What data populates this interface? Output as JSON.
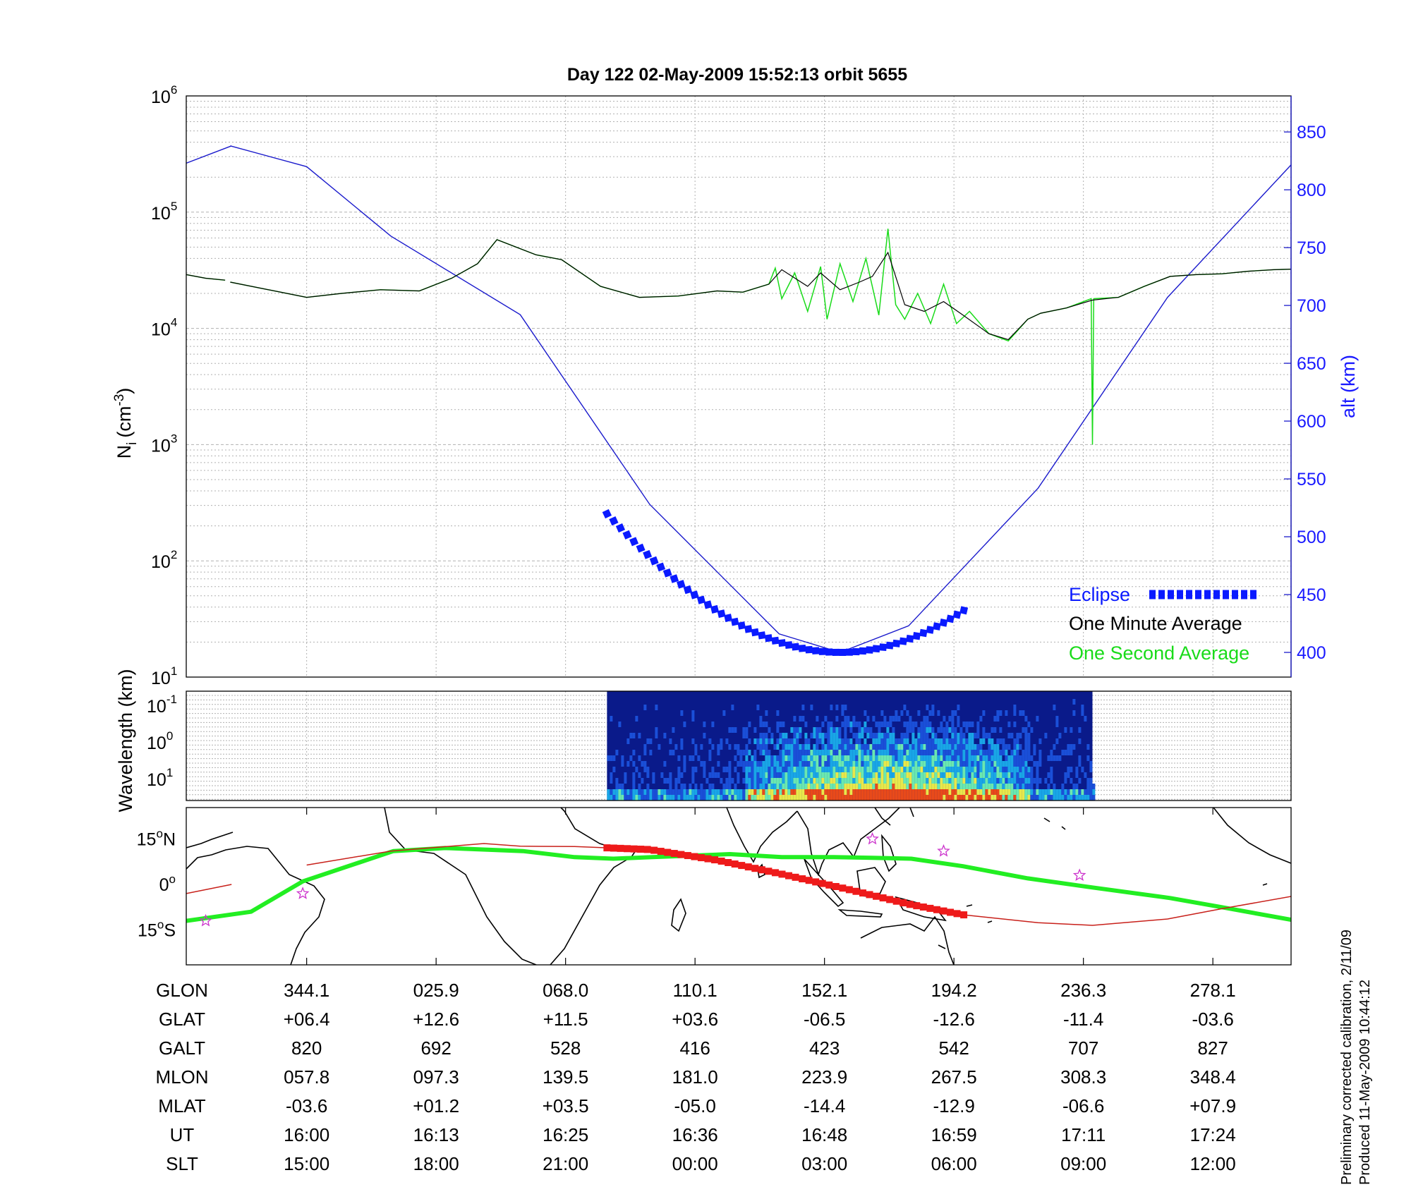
{
  "title": "Day 122  02-May-2009 15:52:13   orbit 5655",
  "colors": {
    "density_avg": "#000000",
    "density_1s": "#1adb1a",
    "altitude": "#1a1acc",
    "eclipse": "#0a1aff",
    "track": "#c8201a",
    "footprint": "#22ee22",
    "star": "#cc33cc"
  },
  "chart_data": [
    {
      "type": "line",
      "panel": "density",
      "ylabel_main": "N",
      "ylabel_sub": "i",
      "ylabel_unit": "(cm",
      "ylabel_exp": "-3",
      "ylabel_close": ")",
      "yscale": "log",
      "ylim": [
        10,
        1000000
      ],
      "yticks": [
        {
          "base": "10",
          "exp": "1"
        },
        {
          "base": "10",
          "exp": "2"
        },
        {
          "base": "10",
          "exp": "3"
        },
        {
          "base": "10",
          "exp": "4"
        },
        {
          "base": "10",
          "exp": "5"
        },
        {
          "base": "10",
          "exp": "6"
        }
      ],
      "y2label": "alt (km)",
      "y2lim": [
        376,
        878
      ],
      "y2ticks": [
        "400",
        "450",
        "500",
        "550",
        "600",
        "650",
        "700",
        "750",
        "800",
        "850"
      ],
      "xlim": [
        0,
        8.6
      ],
      "x_unit": "table column index",
      "grid": true,
      "legend_position": "bottom-right",
      "legend": {
        "eclipse": "Eclipse",
        "one_minute": "One Minute Average",
        "one_second": "One Second Average"
      },
      "series": [
        {
          "name": "One Minute Average",
          "x": [
            0.0,
            0.15,
            0.3,
            0.34,
            0.93,
            1.2,
            1.5,
            1.8,
            2.05,
            2.25,
            2.4,
            2.7,
            2.9,
            3.2,
            3.5,
            3.8,
            4.1,
            4.3,
            4.5,
            4.6,
            4.8,
            4.9,
            5.05,
            5.2,
            5.3,
            5.42,
            5.55,
            5.7,
            5.85,
            6.0,
            6.2,
            6.35,
            6.5,
            6.6,
            6.8,
            7.0,
            7.2,
            7.4,
            7.6,
            7.8,
            8.0,
            8.2,
            8.4,
            8.6
          ],
          "y": [
            29000,
            27000,
            26000,
            25000,
            18500,
            20000,
            21500,
            21000,
            27000,
            36000,
            58000,
            43000,
            39000,
            23000,
            18500,
            19000,
            21000,
            20500,
            24000,
            32000,
            23000,
            30000,
            21500,
            25000,
            28000,
            45000,
            16000,
            14000,
            17000,
            13000,
            9000,
            8000,
            12000,
            13500,
            15000,
            17500,
            18500,
            23000,
            28000,
            29000,
            29500,
            31000,
            32000,
            32500
          ]
        },
        {
          "name": "One Second Average",
          "x": [
            0.0,
            0.15,
            0.3,
            0.34,
            0.93,
            1.2,
            1.5,
            1.8,
            2.05,
            2.25,
            2.4,
            2.7,
            2.9,
            3.2,
            3.5,
            3.8,
            4.1,
            4.3,
            4.5,
            4.55,
            4.6,
            4.7,
            4.8,
            4.9,
            4.95,
            5.05,
            5.15,
            5.25,
            5.35,
            5.42,
            5.48,
            5.55,
            5.65,
            5.75,
            5.85,
            5.95,
            6.05,
            6.2,
            6.35,
            6.5,
            6.6,
            6.8,
            6.99,
            7.0,
            7.01,
            7.2,
            7.4,
            7.6,
            7.8,
            8.0,
            8.2,
            8.4,
            8.6
          ],
          "y": [
            29000,
            27000,
            26000,
            25000,
            18500,
            20000,
            21500,
            21000,
            27000,
            36000,
            58000,
            43000,
            39000,
            23000,
            18500,
            19000,
            21000,
            20500,
            24000,
            33000,
            18000,
            30000,
            14000,
            34000,
            12000,
            36000,
            17000,
            40000,
            13000,
            72000,
            16000,
            12000,
            20000,
            11000,
            24000,
            11000,
            14000,
            9000,
            7800,
            12000,
            13500,
            15000,
            18000,
            1000,
            18000,
            18500,
            23000,
            28000,
            29000,
            29500,
            31000,
            32000,
            32500
          ]
        },
        {
          "name": "Altitude",
          "x": [
            0.0,
            0.35,
            0.34,
            0.93,
            1.58,
            2.58,
            3.58,
            4.58,
            5.05,
            5.58,
            6.58,
            7.58,
            8.58
          ],
          "y": [
            823,
            838,
            838,
            820,
            760,
            692,
            528,
            416,
            400,
            423,
            542,
            707,
            827
          ]
        },
        {
          "name": "Eclipse",
          "x_range": [
            3.25,
            6.05
          ]
        }
      ]
    },
    {
      "type": "heatmap",
      "panel": "spectrogram",
      "ylabel": "Wavelength (km)",
      "yscale": "log",
      "yticks": [
        {
          "base": "10",
          "exp": "-1"
        },
        {
          "base": "10",
          "exp": "0"
        },
        {
          "base": "10",
          "exp": "1"
        }
      ],
      "x_range": [
        3.25,
        7.0
      ],
      "high_power_range": [
        4.3,
        6.5
      ],
      "colormap": [
        "#0a1a8a",
        "#1a4fd8",
        "#19a6e6",
        "#6ae8b0",
        "#e8e84a",
        "#e84a1a"
      ]
    },
    {
      "type": "map",
      "panel": "ground-track",
      "yticks": [
        {
          "deg": "15",
          "unit": "o",
          "hemi": "N"
        },
        {
          "deg": "0",
          "unit": "o",
          "hemi": ""
        },
        {
          "deg": "15",
          "unit": "o",
          "hemi": "S"
        }
      ],
      "ylim": [
        -25,
        27
      ],
      "track_lat_x": [
        0.0,
        0.35,
        0.93,
        1.58,
        2.3,
        2.58,
        3.0,
        3.58,
        4.1,
        4.58,
        5.1,
        5.58,
        6.0,
        6.58,
        7.0,
        7.58,
        8.0,
        8.58
      ],
      "track_lat_y": [
        -3,
        0,
        6.4,
        11,
        13.5,
        12.6,
        12.5,
        11.5,
        8,
        3.6,
        -1.5,
        -6.5,
        -10,
        -12.6,
        -13.5,
        -11.4,
        -8,
        -3.6
      ],
      "footprint_x": [
        0.0,
        0.5,
        0.9,
        1.6,
        2.0,
        2.6,
        3.0,
        3.3,
        3.6,
        4.2,
        4.6,
        5.0,
        5.3,
        5.6,
        6.0,
        6.5,
        7.0,
        7.6,
        8.0,
        8.58
      ],
      "footprint_y": [
        -12,
        -9,
        1,
        11,
        12,
        11,
        9,
        8.5,
        9,
        10,
        9,
        9,
        8.8,
        8.5,
        6,
        2,
        -1,
        -4.5,
        -7.5,
        -12
      ],
      "stars": [
        [
          5.3,
          15
        ],
        [
          5.85,
          11
        ],
        [
          6.9,
          3
        ],
        [
          0.15,
          -12
        ],
        [
          0.9,
          -3
        ]
      ]
    }
  ],
  "table": {
    "row_labels": [
      "GLON",
      "GLAT",
      "GALT",
      "MLON",
      "MLAT",
      "UT",
      "SLT"
    ],
    "columns": [
      [
        "344.1",
        "+06.4",
        "820",
        "057.8",
        "-03.6",
        "16:00",
        "15:00"
      ],
      [
        "025.9",
        "+12.6",
        "692",
        "097.3",
        "+01.2",
        "16:13",
        "18:00"
      ],
      [
        "068.0",
        "+11.5",
        "528",
        "139.5",
        "+03.5",
        "16:25",
        "21:00"
      ],
      [
        "110.1",
        "+03.6",
        "416",
        "181.0",
        "-05.0",
        "16:36",
        "00:00"
      ],
      [
        "152.1",
        "-06.5",
        "423",
        "223.9",
        "-14.4",
        "16:48",
        "03:00"
      ],
      [
        "194.2",
        "-12.6",
        "542",
        "267.5",
        "-12.9",
        "16:59",
        "06:00"
      ],
      [
        "236.3",
        "-11.4",
        "707",
        "308.3",
        "-06.6",
        "17:11",
        "09:00"
      ],
      [
        "278.1",
        "-03.6",
        "827",
        "348.4",
        "+07.9",
        "17:24",
        "12:00"
      ]
    ]
  },
  "footer": {
    "line1": "Preliminary corrected calibration, 2/11/09",
    "line2": "Produced 11-May-2009 10:44:12"
  }
}
